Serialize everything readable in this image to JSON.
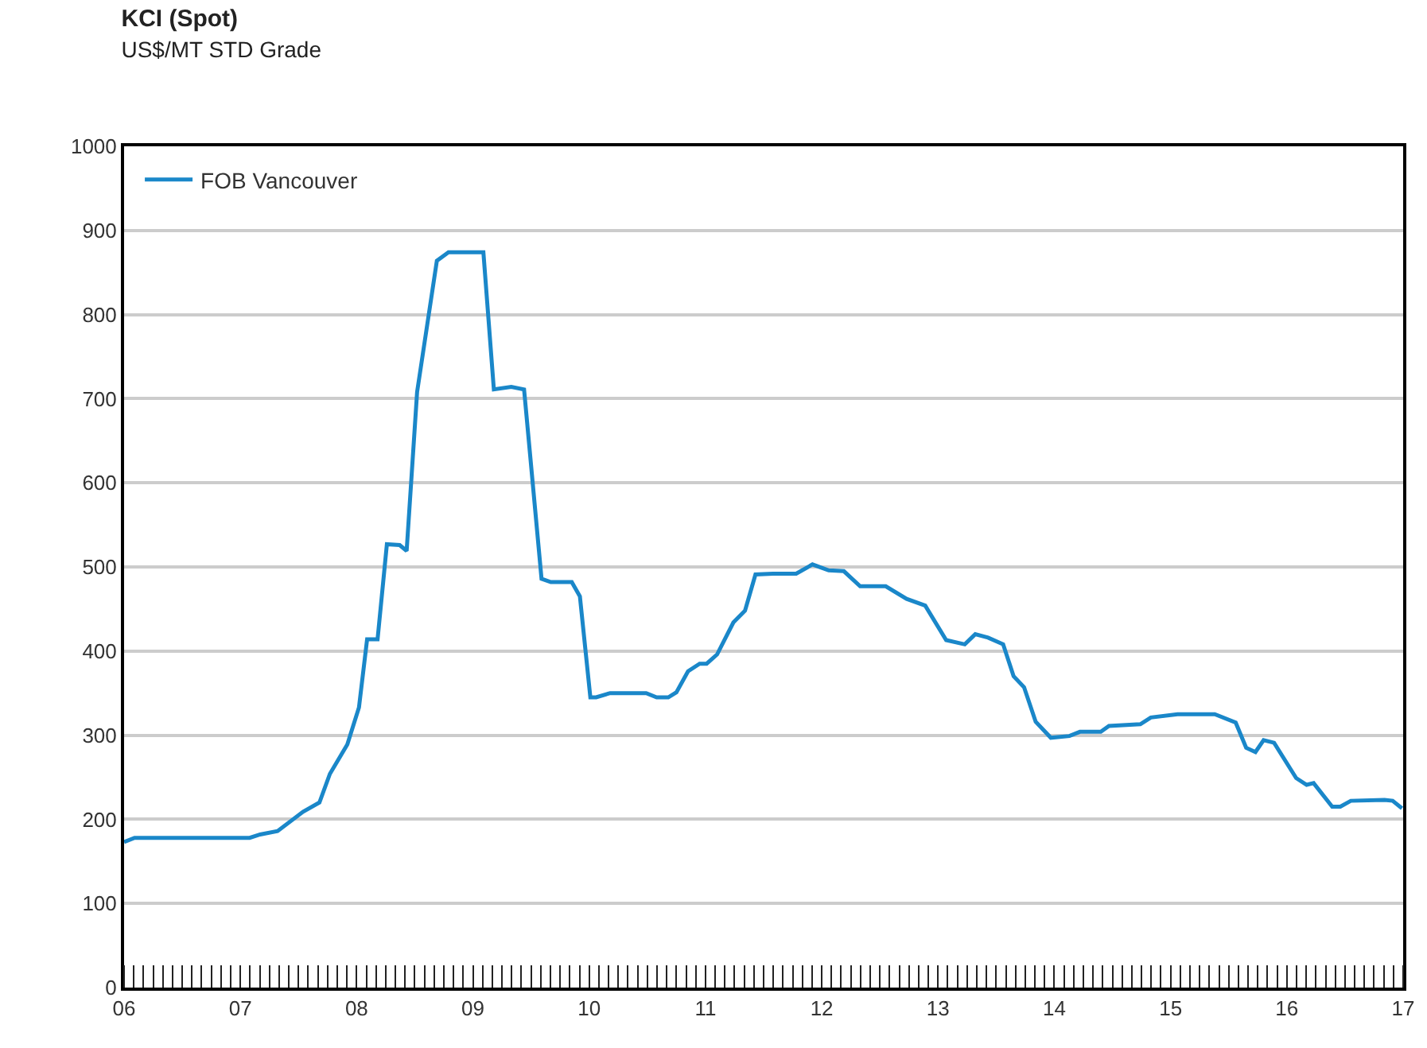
{
  "chart_data": {
    "type": "line",
    "title": "KCI (Spot)",
    "subtitle": "US$/MT STD Grade",
    "x": [
      2006.0,
      2006.09,
      2007.08,
      2007.17,
      2007.32,
      2007.54,
      2007.68,
      2007.77,
      2007.92,
      2008.02,
      2008.09,
      2008.18,
      2008.26,
      2008.37,
      2008.43,
      2008.52,
      2008.69,
      2008.79,
      2009.09,
      2009.18,
      2009.33,
      2009.44,
      2009.59,
      2009.67,
      2009.85,
      2009.92,
      2010.01,
      2010.06,
      2010.18,
      2010.49,
      2010.58,
      2010.68,
      2010.75,
      2010.85,
      2010.95,
      2011.01,
      2011.1,
      2011.24,
      2011.34,
      2011.43,
      2011.58,
      2011.78,
      2011.92,
      2012.06,
      2012.19,
      2012.33,
      2012.55,
      2012.73,
      2012.89,
      2013.07,
      2013.23,
      2013.32,
      2013.43,
      2013.56,
      2013.65,
      2013.74,
      2013.84,
      2013.97,
      2014.13,
      2014.22,
      2014.4,
      2014.47,
      2014.74,
      2014.83,
      2015.06,
      2015.38,
      2015.56,
      2015.65,
      2015.73,
      2015.8,
      2015.89,
      2016.08,
      2016.17,
      2016.23,
      2016.39,
      2016.46,
      2016.55,
      2016.84,
      2016.91,
      2016.99
    ],
    "series": [
      {
        "name": "FOB Vancouver",
        "color": "#1a87c9",
        "values": [
          173,
          178,
          178,
          182,
          186,
          209,
          220,
          254,
          289,
          333,
          414,
          414,
          527,
          526,
          519,
          708,
          864,
          874,
          874,
          711,
          714,
          711,
          486,
          482,
          482,
          465,
          345,
          345,
          350,
          350,
          345,
          345,
          351,
          376,
          385,
          385,
          396,
          434,
          448,
          491,
          492,
          492,
          503,
          496,
          495,
          477,
          477,
          462,
          454,
          413,
          408,
          420,
          416,
          408,
          370,
          357,
          316,
          297,
          299,
          304,
          304,
          311,
          313,
          321,
          325,
          325,
          315,
          285,
          280,
          294,
          291,
          249,
          241,
          243,
          215,
          215,
          222,
          223,
          222,
          213
        ]
      }
    ],
    "xlim": [
      2006,
      2017
    ],
    "xticks": [
      {
        "value": 2006,
        "label": "06"
      },
      {
        "value": 2007,
        "label": "07"
      },
      {
        "value": 2008,
        "label": "08"
      },
      {
        "value": 2009,
        "label": "09"
      },
      {
        "value": 2010,
        "label": "10"
      },
      {
        "value": 2011,
        "label": "11"
      },
      {
        "value": 2012,
        "label": "12"
      },
      {
        "value": 2013,
        "label": "13"
      },
      {
        "value": 2014,
        "label": "14"
      },
      {
        "value": 2015,
        "label": "15"
      },
      {
        "value": 2016,
        "label": "16"
      },
      {
        "value": 2017,
        "label": "17"
      }
    ],
    "ylim": [
      0,
      1000
    ],
    "yticks": [
      0,
      100,
      200,
      300,
      400,
      500,
      600,
      700,
      800,
      900,
      1000
    ],
    "grid": "y",
    "legend": "top left",
    "marker": "none",
    "line_style": "solid"
  }
}
